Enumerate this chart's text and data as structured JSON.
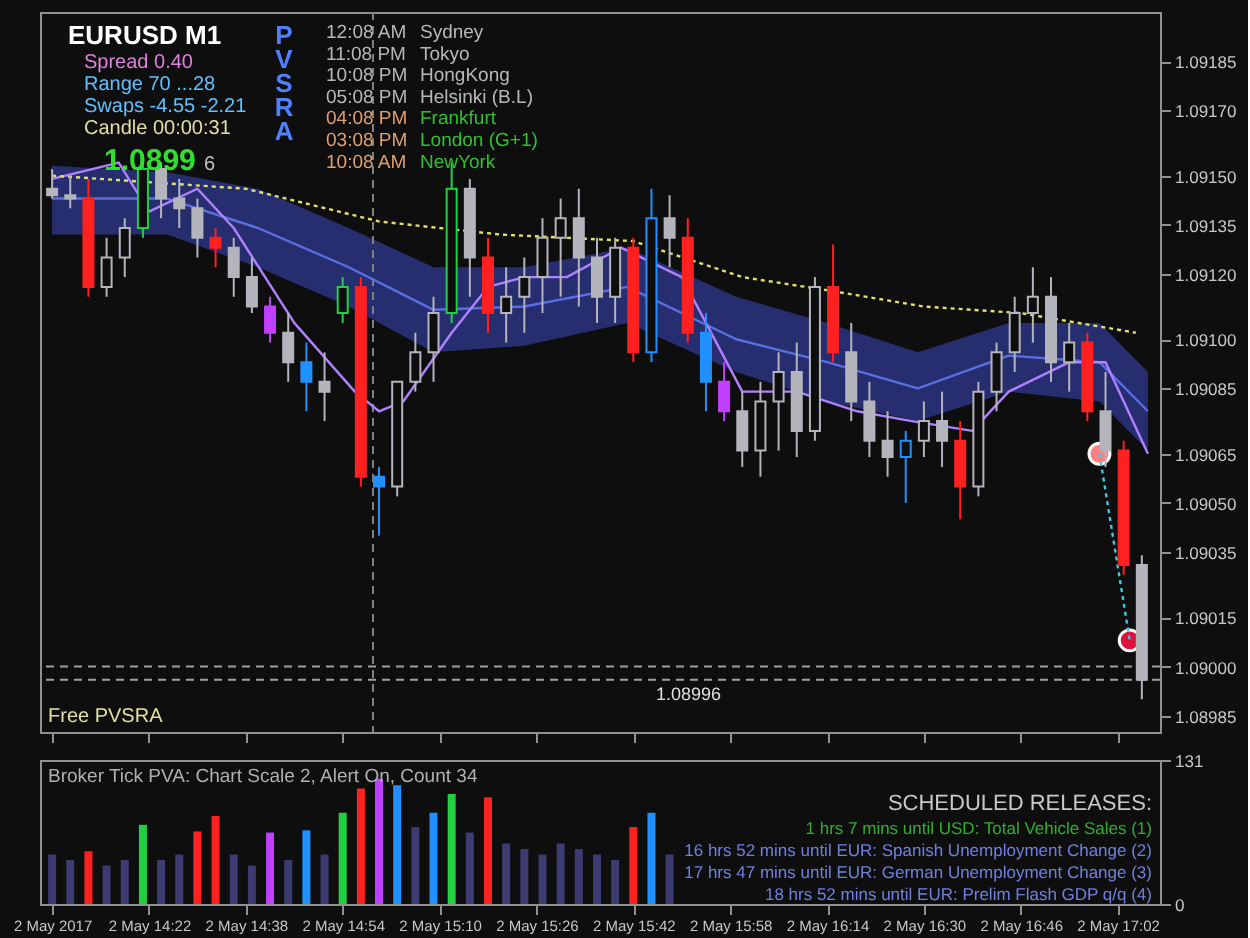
{
  "chart_data": [
    {
      "type": "candlestick",
      "title": null,
      "x": [
        "2017-05-02T14:06",
        "2017-05-02T14:09",
        "2017-05-02T14:12",
        "2017-05-02T14:15",
        "2017-05-02T14:18",
        "2017-05-02T14:21",
        "2017-05-02T14:24",
        "2017-05-02T14:27",
        "2017-05-02T14:30",
        "2017-05-02T14:33",
        "2017-05-02T14:36",
        "2017-05-02T14:39",
        "2017-05-02T14:42",
        "2017-05-02T14:45",
        "2017-05-02T14:48",
        "2017-05-02T14:51",
        "2017-05-02T14:54",
        "2017-05-02T14:57",
        "2017-05-02T15:00",
        "2017-05-02T15:03",
        "2017-05-02T15:06",
        "2017-05-02T15:09",
        "2017-05-02T15:12",
        "2017-05-02T15:15",
        "2017-05-02T15:18",
        "2017-05-02T15:21",
        "2017-05-02T15:24",
        "2017-05-02T15:27",
        "2017-05-02T15:30",
        "2017-05-02T15:33",
        "2017-05-02T15:36",
        "2017-05-02T15:39",
        "2017-05-02T15:42",
        "2017-05-02T15:45",
        "2017-05-02T15:48",
        "2017-05-02T15:51",
        "2017-05-02T15:54",
        "2017-05-02T15:57",
        "2017-05-02T16:00",
        "2017-05-02T16:03",
        "2017-05-02T16:06",
        "2017-05-02T16:09",
        "2017-05-02T16:12",
        "2017-05-02T16:15",
        "2017-05-02T16:18",
        "2017-05-02T16:21",
        "2017-05-02T16:24",
        "2017-05-02T16:27",
        "2017-05-02T16:30",
        "2017-05-02T16:33",
        "2017-05-02T16:36",
        "2017-05-02T16:39",
        "2017-05-02T16:42",
        "2017-05-02T16:45",
        "2017-05-02T16:48",
        "2017-05-02T16:51",
        "2017-05-02T16:54",
        "2017-05-02T16:57",
        "2017-05-02T17:00",
        "2017-05-02T17:03",
        "2017-05-02T17:06"
      ],
      "ohlc": [
        [
          1.09146,
          1.09152,
          1.09143,
          1.09144
        ],
        [
          1.09144,
          1.0915,
          1.0914,
          1.09143
        ],
        [
          1.09143,
          1.09149,
          1.09113,
          1.09116
        ],
        [
          1.09116,
          1.09131,
          1.09113,
          1.09125
        ],
        [
          1.09125,
          1.09137,
          1.09119,
          1.09134
        ],
        [
          1.09134,
          1.09154,
          1.09131,
          1.09152
        ],
        [
          1.09152,
          1.09154,
          1.09137,
          1.09143
        ],
        [
          1.09143,
          1.09149,
          1.09134,
          1.0914
        ],
        [
          1.0914,
          1.09143,
          1.09125,
          1.09131
        ],
        [
          1.09131,
          1.09134,
          1.09122,
          1.09128
        ],
        [
          1.09128,
          1.09131,
          1.09113,
          1.09119
        ],
        [
          1.09119,
          1.09125,
          1.09108,
          1.0911
        ],
        [
          1.0911,
          1.09113,
          1.09099,
          1.09102
        ],
        [
          1.09102,
          1.09108,
          1.09087,
          1.09093
        ],
        [
          1.09093,
          1.09099,
          1.09078,
          1.09087
        ],
        [
          1.09087,
          1.09096,
          1.09075,
          1.09084
        ],
        [
          1.09108,
          1.09119,
          1.09105,
          1.09116
        ],
        [
          1.09116,
          1.09119,
          1.09055,
          1.09058
        ],
        [
          1.09058,
          1.09061,
          1.0904,
          1.09055
        ],
        [
          1.09055,
          1.09087,
          1.09052,
          1.09087
        ],
        [
          1.09087,
          1.09102,
          1.09084,
          1.09096
        ],
        [
          1.09096,
          1.09113,
          1.09087,
          1.09108
        ],
        [
          1.09108,
          1.09154,
          1.09105,
          1.09146
        ],
        [
          1.09146,
          1.09149,
          1.09113,
          1.09125
        ],
        [
          1.09125,
          1.09131,
          1.09102,
          1.09108
        ],
        [
          1.09108,
          1.09122,
          1.09099,
          1.09113
        ],
        [
          1.09113,
          1.09125,
          1.09102,
          1.09119
        ],
        [
          1.09119,
          1.09137,
          1.09108,
          1.09131
        ],
        [
          1.09131,
          1.09143,
          1.09113,
          1.09137
        ],
        [
          1.09137,
          1.09146,
          1.0911,
          1.09125
        ],
        [
          1.09125,
          1.09131,
          1.09105,
          1.09113
        ],
        [
          1.09113,
          1.09131,
          1.09105,
          1.09128
        ],
        [
          1.09128,
          1.09131,
          1.09093,
          1.09096
        ],
        [
          1.09096,
          1.09146,
          1.09093,
          1.09137
        ],
        [
          1.09137,
          1.09144,
          1.09122,
          1.09131
        ],
        [
          1.09131,
          1.09137,
          1.09099,
          1.09102
        ],
        [
          1.09102,
          1.09108,
          1.09078,
          1.09087
        ],
        [
          1.09087,
          1.09093,
          1.09075,
          1.09078
        ],
        [
          1.09078,
          1.09084,
          1.09061,
          1.09066
        ],
        [
          1.09066,
          1.09087,
          1.09058,
          1.09081
        ],
        [
          1.09081,
          1.09096,
          1.09066,
          1.0909
        ],
        [
          1.0909,
          1.09099,
          1.09064,
          1.09072
        ],
        [
          1.09072,
          1.09119,
          1.09069,
          1.09116
        ],
        [
          1.09116,
          1.09129,
          1.09093,
          1.09096
        ],
        [
          1.09096,
          1.09105,
          1.09075,
          1.09081
        ],
        [
          1.09081,
          1.09087,
          1.09064,
          1.09069
        ],
        [
          1.09069,
          1.09078,
          1.09058,
          1.09064
        ],
        [
          1.09064,
          1.09072,
          1.0905,
          1.09069
        ],
        [
          1.09069,
          1.09081,
          1.09064,
          1.09075
        ],
        [
          1.09075,
          1.09084,
          1.09061,
          1.09069
        ],
        [
          1.09069,
          1.09075,
          1.09045,
          1.09055
        ],
        [
          1.09055,
          1.09087,
          1.09052,
          1.09084
        ],
        [
          1.09084,
          1.09099,
          1.09078,
          1.09096
        ],
        [
          1.09096,
          1.09113,
          1.0909,
          1.09108
        ],
        [
          1.09108,
          1.09122,
          1.09099,
          1.09113
        ],
        [
          1.09113,
          1.09119,
          1.09087,
          1.09093
        ],
        [
          1.09093,
          1.09105,
          1.09084,
          1.09099
        ],
        [
          1.09099,
          1.09102,
          1.09075,
          1.09078
        ],
        [
          1.09078,
          1.0909,
          1.09061,
          1.09066
        ],
        [
          1.09066,
          1.09069,
          1.09028,
          1.09031
        ],
        [
          1.09031,
          1.09034,
          1.0899,
          1.08996
        ]
      ],
      "colors": [
        "#b4b4bc",
        "#b4b4bc",
        "#ff2020",
        "#b4b4bc",
        "#b4b4bc",
        "#20d040",
        "#b4b4bc",
        "#b4b4bc",
        "#b4b4bc",
        "#ff2020",
        "#b4b4bc",
        "#b4b4bc",
        "#c040ff",
        "#b4b4bc",
        "#2090ff",
        "#b4b4bc",
        "#20d040",
        "#ff2020",
        "#2090ff",
        "#b4b4bc",
        "#b4b4bc",
        "#b4b4bc",
        "#20d040",
        "#b4b4bc",
        "#ff2020",
        "#b4b4bc",
        "#b4b4bc",
        "#b4b4bc",
        "#b4b4bc",
        "#b4b4bc",
        "#b4b4bc",
        "#b4b4bc",
        "#ff2020",
        "#2090ff",
        "#b4b4bc",
        "#ff2020",
        "#2090ff",
        "#c040ff",
        "#b4b4bc",
        "#b4b4bc",
        "#b4b4bc",
        "#b4b4bc",
        "#b4b4bc",
        "#ff2020",
        "#b4b4bc",
        "#b4b4bc",
        "#b4b4bc",
        "#2090ff",
        "#b4b4bc",
        "#b4b4bc",
        "#ff2020",
        "#b4b4bc",
        "#b4b4bc",
        "#b4b4bc",
        "#b4b4bc",
        "#b4b4bc",
        "#b4b4bc",
        "#ff2020",
        "#b4b4bc",
        "#ff2020",
        "#b4b4bc"
      ],
      "series": [
        {
          "type": "line",
          "color": "#5a6ee0",
          "x": [
            "2017-05-02T14:06",
            "2017-05-02T14:25",
            "2017-05-02T14:40",
            "2017-05-02T14:55",
            "2017-05-02T15:09",
            "2017-05-02T15:24",
            "2017-05-02T15:41",
            "2017-05-02T15:59",
            "2017-05-02T16:14",
            "2017-05-02T16:29",
            "2017-05-02T16:44",
            "2017-05-02T16:59",
            "2017-05-02T17:07"
          ],
          "values": [
            1.09143,
            1.09143,
            1.09134,
            1.09122,
            1.09109,
            1.0911,
            1.09116,
            1.091,
            1.09093,
            1.09085,
            1.09095,
            1.09093,
            1.09078
          ],
          "lower": [
            1.09132,
            1.09132,
            1.09122,
            1.0911,
            1.09096,
            1.09098,
            1.09105,
            1.0909,
            1.09081,
            1.09075,
            1.09084,
            1.09081,
            1.09066
          ],
          "upper": [
            1.09153,
            1.09151,
            1.09146,
            1.09134,
            1.09122,
            1.09122,
            1.09128,
            1.09113,
            1.09105,
            1.09096,
            1.09105,
            1.09105,
            1.0909
          ]
        },
        {
          "type": "line",
          "color": "#b080ff",
          "x": [
            "2017-05-02T14:06",
            "2017-05-02T14:17",
            "2017-05-02T14:22",
            "2017-05-02T14:30",
            "2017-05-02T14:36",
            "2017-05-02T14:46",
            "2017-05-02T14:56",
            "2017-05-02T15:00",
            "2017-05-02T15:04",
            "2017-05-02T15:12",
            "2017-05-02T15:18",
            "2017-05-02T15:24",
            "2017-05-02T15:31",
            "2017-05-02T15:40",
            "2017-05-02T15:50",
            "2017-05-02T16:00",
            "2017-05-02T16:09",
            "2017-05-02T16:19",
            "2017-05-02T16:28",
            "2017-05-02T16:38",
            "2017-05-02T16:44",
            "2017-05-02T16:54",
            "2017-05-02T17:00",
            "2017-05-02T17:07"
          ],
          "values": [
            1.09149,
            1.09154,
            1.09139,
            1.09146,
            1.09134,
            1.09105,
            1.09084,
            1.09078,
            1.09081,
            1.09102,
            1.09116,
            1.09119,
            1.09119,
            1.09128,
            1.09119,
            1.09084,
            1.09084,
            1.09078,
            1.09075,
            1.09072,
            1.09084,
            1.09093,
            1.09093,
            1.09065
          ]
        },
        {
          "type": "line",
          "color": "#e0e070",
          "line_style": "dotted",
          "x": [
            "2017-05-02T14:06",
            "2017-05-02T14:38",
            "2017-05-02T15:00",
            "2017-05-02T15:20",
            "2017-05-02T15:42",
            "2017-05-02T16:00",
            "2017-05-02T16:14",
            "2017-05-02T16:30",
            "2017-05-02T16:46",
            "2017-05-02T17:05"
          ],
          "values": [
            1.0915,
            1.09146,
            1.09136,
            1.09132,
            1.0913,
            1.09119,
            1.09115,
            1.0911,
            1.09108,
            1.09102
          ]
        },
        {
          "type": "line",
          "color": "#40c8e0",
          "line_style": "dotted",
          "x": [
            "2017-05-02T16:59",
            "2017-05-02T17:04"
          ],
          "values": [
            1.09065,
            1.09008
          ]
        },
        {
          "type": "scatter",
          "marker": "circle",
          "colors": [
            "#ff8080",
            "#e0103c"
          ],
          "x": [
            "2017-05-02T16:59",
            "2017-05-02T17:04"
          ],
          "values": [
            1.09065,
            1.09008
          ]
        }
      ],
      "ref_lines": [
        {
          "axis": "y",
          "value": 1.09,
          "color": "#a0a0a0",
          "line_style": "dashed",
          "label": null
        },
        {
          "axis": "y",
          "value": 1.08996,
          "color": "#a0a0a0",
          "line_style": "dashed",
          "label": "1.08996"
        },
        {
          "axis": "x",
          "value": "2017-05-02T14:59",
          "color": "#808080",
          "line_style": "dashed",
          "label": null
        }
      ],
      "xlim": [
        "2017-05-02T14:04",
        "2017-05-02T17:09"
      ],
      "xticks": [
        "2017-05-02T14:06",
        "2017-05-02T14:22",
        "2017-05-02T14:38",
        "2017-05-02T14:54",
        "2017-05-02T15:10",
        "2017-05-02T15:26",
        "2017-05-02T15:42",
        "2017-05-02T15:58",
        "2017-05-02T16:14",
        "2017-05-02T16:30",
        "2017-05-02T16:46",
        "2017-05-02T17:02"
      ],
      "ylim": [
        1.0898,
        1.092
      ],
      "yticks": [
        1.08985,
        {
          "value": 1.09,
          "label": "1.09000"
        },
        1.09015,
        1.09035,
        {
          "value": 1.0905,
          "label": "1.09050"
        },
        1.09065,
        1.09085,
        {
          "value": 1.091,
          "label": "1.09100"
        },
        {
          "value": 1.0912,
          "label": "1.09120"
        },
        1.09135,
        {
          "value": 1.0915,
          "label": "1.09150"
        },
        {
          "value": 1.0917,
          "label": "1.09170"
        },
        1.09185
      ],
      "tick_labels": "y",
      "grid": false,
      "annotations": [
        "EURUSD  M1",
        "Spread 0.40",
        "Range  70   ...28",
        "Swaps  -4.55  -2.21",
        "Candle  00:00:31",
        "1.0899",
        "6",
        "PVSRA",
        "12:08 AM",
        "11:08 PM",
        "10:08 PM",
        "05:08 PM",
        "04:08 PM",
        "03:08 PM",
        "10:08 AM",
        "Sydney",
        "Tokyo",
        "HongKong",
        "Helsinki  (B.L)",
        "Frankfurt",
        "London  (G+1)",
        "NewYork",
        "Free PVSRA"
      ]
    },
    {
      "type": "bar",
      "x": [
        "2017-05-02T14:06",
        "2017-05-02T14:09",
        "2017-05-02T14:12",
        "2017-05-02T14:15",
        "2017-05-02T14:18",
        "2017-05-02T14:21",
        "2017-05-02T14:24",
        "2017-05-02T14:27",
        "2017-05-02T14:30",
        "2017-05-02T14:33",
        "2017-05-02T14:36",
        "2017-05-02T14:39",
        "2017-05-02T14:42",
        "2017-05-02T14:45",
        "2017-05-02T14:48",
        "2017-05-02T14:51",
        "2017-05-02T14:54",
        "2017-05-02T14:57",
        "2017-05-02T15:00",
        "2017-05-02T15:03",
        "2017-05-02T15:06",
        "2017-05-02T15:09",
        "2017-05-02T15:12",
        "2017-05-02T15:15",
        "2017-05-02T15:18",
        "2017-05-02T15:21",
        "2017-05-02T15:24",
        "2017-05-02T15:27",
        "2017-05-02T15:30",
        "2017-05-02T15:33",
        "2017-05-02T15:36",
        "2017-05-02T15:39",
        "2017-05-02T15:42",
        "2017-05-02T15:45",
        "2017-05-02T15:48"
      ],
      "values": [
        45,
        40,
        48,
        35,
        40,
        72,
        40,
        45,
        66,
        80,
        45,
        35,
        65,
        40,
        67,
        45,
        83,
        105,
        114,
        108,
        70,
        83,
        100,
        65,
        97,
        55,
        50,
        45,
        55,
        50,
        45,
        40,
        70,
        83,
        45
      ],
      "colors": [
        "#3c3c72",
        "#3c3c72",
        "#ff2020",
        "#3c3c72",
        "#3c3c72",
        "#20d040",
        "#3c3c72",
        "#3c3c72",
        "#ff2020",
        "#ff2020",
        "#3c3c72",
        "#3c3c72",
        "#c040ff",
        "#3c3c72",
        "#2090ff",
        "#3c3c72",
        "#20d040",
        "#ff2020",
        "#c040ff",
        "#2090ff",
        "#3c3c72",
        "#2090ff",
        "#20d040",
        "#3c3c72",
        "#ff2020",
        "#3c3c72",
        "#3c3c72",
        "#3c3c72",
        "#3c3c72",
        "#3c3c72",
        "#3c3c72",
        "#3c3c72",
        "#ff2020",
        "#2090ff",
        "#3c3c72"
      ],
      "xlim": [
        "2017-05-02T14:04",
        "2017-05-02T17:09"
      ],
      "xticks": [
        {
          "value": "2017-05-02T14:06",
          "label": "2 May 2017"
        },
        {
          "value": "2017-05-02T14:22",
          "label": "2 May 14:22"
        },
        {
          "value": "2017-05-02T14:38",
          "label": "2 May 14:38"
        },
        {
          "value": "2017-05-02T14:54",
          "label": "2 May 14:54"
        },
        {
          "value": "2017-05-02T15:10",
          "label": "2 May 15:10"
        },
        {
          "value": "2017-05-02T15:26",
          "label": "2 May 15:26"
        },
        {
          "value": "2017-05-02T15:42",
          "label": "2 May 15:42"
        },
        {
          "value": "2017-05-02T15:58",
          "label": "2 May 15:58"
        },
        {
          "value": "2017-05-02T16:14",
          "label": "2 May 16:14"
        },
        {
          "value": "2017-05-02T16:30",
          "label": "2 May 16:30"
        },
        {
          "value": "2017-05-02T16:46",
          "label": "2 May 16:46"
        },
        {
          "value": "2017-05-02T17:02",
          "label": "2 May 17:02"
        }
      ],
      "ylim": [
        0,
        131
      ],
      "yticks": [
        0,
        131
      ],
      "grid": false,
      "annotations": [
        "Broker Tick PVA:   Chart Scale  2,  Alert On,  Count  34",
        "SCHEDULED RELEASES:",
        "1 hrs 7 mins until USD: Total Vehicle Sales  (1)",
        "16 hrs 52 mins until EUR: Spanish Unemployment Change  (2)",
        "17 hrs 47 mins until EUR: German Unemployment Change  (3)",
        "18 hrs 52 mins until EUR: Prelim Flash GDP q/q  (4)"
      ]
    }
  ]
}
